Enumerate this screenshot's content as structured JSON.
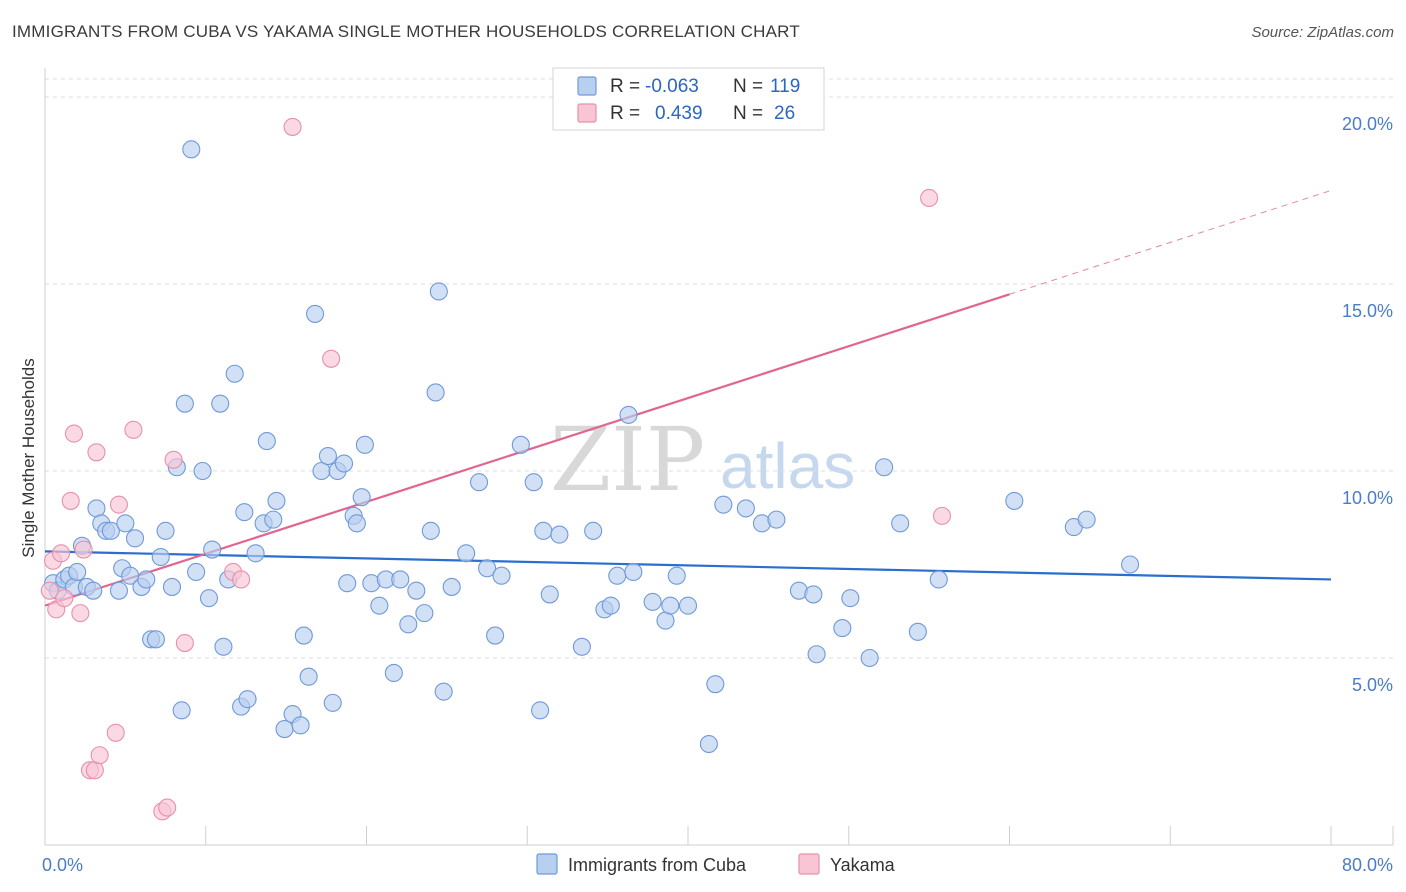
{
  "title": "IMMIGRANTS FROM CUBA VS YAKAMA SINGLE MOTHER HOUSEHOLDS CORRELATION CHART",
  "source": "Source: ZipAtlas.com",
  "colors": {
    "blue_fill": "#b8d0f0",
    "blue_stroke": "#6f9ad8",
    "blue_line": "#2a6fcf",
    "pink_fill": "#f8c5d5",
    "pink_stroke": "#e890ab",
    "pink_line": "#e0668f"
  },
  "legend_top": {
    "rows": [
      {
        "r_label": "R =",
        "r_value": "-0.063",
        "n_label": "N =",
        "n_value": "119"
      },
      {
        "r_label": "R =",
        "r_value": "0.439",
        "n_label": "N =",
        "n_value": "26"
      }
    ]
  },
  "legend_bottom": {
    "series1": "Immigrants from Cuba",
    "series2": "Yakama"
  },
  "watermark": {
    "zip": "ZIP",
    "atlas": "atlas"
  },
  "chart_data": {
    "type": "scatter",
    "title": "IMMIGRANTS FROM CUBA VS YAKAMA SINGLE MOTHER HOUSEHOLDS CORRELATION CHART",
    "xlabel": "",
    "ylabel": "Single Mother Households",
    "xlim": [
      0,
      80
    ],
    "ylim": [
      0,
      20.8
    ],
    "x_tick_labels": [
      {
        "value": 0,
        "label": "0.0%"
      },
      {
        "value": 80,
        "label": "80.0%"
      }
    ],
    "y_tick_labels": [
      {
        "value": 5,
        "label": "5.0%"
      },
      {
        "value": 10,
        "label": "10.0%"
      },
      {
        "value": 15,
        "label": "15.0%"
      },
      {
        "value": 20,
        "label": "20.0%"
      }
    ],
    "series": [
      {
        "name": "Immigrants from Cuba",
        "R": -0.063,
        "N": 119,
        "trend": {
          "x0": 0,
          "y0": 7.85,
          "x1": 80,
          "y1": 7.1,
          "solid_until": 80
        },
        "points": [
          [
            0.5,
            7.0
          ],
          [
            0.8,
            6.8
          ],
          [
            1.2,
            7.1
          ],
          [
            1.5,
            7.2
          ],
          [
            1.8,
            6.9
          ],
          [
            2.0,
            7.3
          ],
          [
            2.3,
            8.0
          ],
          [
            2.6,
            6.9
          ],
          [
            3.0,
            6.8
          ],
          [
            3.2,
            9.0
          ],
          [
            3.5,
            8.6
          ],
          [
            3.8,
            8.4
          ],
          [
            4.1,
            8.4
          ],
          [
            4.6,
            6.8
          ],
          [
            4.8,
            7.4
          ],
          [
            5.0,
            8.6
          ],
          [
            5.3,
            7.2
          ],
          [
            5.6,
            8.2
          ],
          [
            6.0,
            6.9
          ],
          [
            6.3,
            7.1
          ],
          [
            6.6,
            5.5
          ],
          [
            6.9,
            5.5
          ],
          [
            7.2,
            7.7
          ],
          [
            7.5,
            8.4
          ],
          [
            7.9,
            6.9
          ],
          [
            8.2,
            10.1
          ],
          [
            8.5,
            3.6
          ],
          [
            8.7,
            11.8
          ],
          [
            9.1,
            18.6
          ],
          [
            9.4,
            7.3
          ],
          [
            9.8,
            10.0
          ],
          [
            10.2,
            6.6
          ],
          [
            10.4,
            7.9
          ],
          [
            10.9,
            11.8
          ],
          [
            11.1,
            5.3
          ],
          [
            11.4,
            7.1
          ],
          [
            11.8,
            12.6
          ],
          [
            12.2,
            3.7
          ],
          [
            12.4,
            8.9
          ],
          [
            12.6,
            3.9
          ],
          [
            13.1,
            7.8
          ],
          [
            13.6,
            8.6
          ],
          [
            13.8,
            10.8
          ],
          [
            14.2,
            8.7
          ],
          [
            14.4,
            9.2
          ],
          [
            14.9,
            3.1
          ],
          [
            15.4,
            3.5
          ],
          [
            15.9,
            3.2
          ],
          [
            16.1,
            5.6
          ],
          [
            16.4,
            4.5
          ],
          [
            16.8,
            14.2
          ],
          [
            17.2,
            10.0
          ],
          [
            17.6,
            10.4
          ],
          [
            17.9,
            3.8
          ],
          [
            18.2,
            10.0
          ],
          [
            18.6,
            10.2
          ],
          [
            18.8,
            7.0
          ],
          [
            19.2,
            8.8
          ],
          [
            19.4,
            8.6
          ],
          [
            19.7,
            9.3
          ],
          [
            19.9,
            10.7
          ],
          [
            20.3,
            7.0
          ],
          [
            20.8,
            6.4
          ],
          [
            21.2,
            7.1
          ],
          [
            21.7,
            4.6
          ],
          [
            22.1,
            7.1
          ],
          [
            22.6,
            5.9
          ],
          [
            23.1,
            6.8
          ],
          [
            23.6,
            6.2
          ],
          [
            24.0,
            8.4
          ],
          [
            24.3,
            12.1
          ],
          [
            24.5,
            14.8
          ],
          [
            24.8,
            4.1
          ],
          [
            25.3,
            6.9
          ],
          [
            26.2,
            7.8
          ],
          [
            27.0,
            9.7
          ],
          [
            27.5,
            7.4
          ],
          [
            28.0,
            5.6
          ],
          [
            28.4,
            7.2
          ],
          [
            29.6,
            10.7
          ],
          [
            30.4,
            9.7
          ],
          [
            30.8,
            3.6
          ],
          [
            31.0,
            8.4
          ],
          [
            31.4,
            6.7
          ],
          [
            32.0,
            8.3
          ],
          [
            33.4,
            5.3
          ],
          [
            34.1,
            8.4
          ],
          [
            34.8,
            6.3
          ],
          [
            35.2,
            6.4
          ],
          [
            35.6,
            7.2
          ],
          [
            36.3,
            11.5
          ],
          [
            36.6,
            7.3
          ],
          [
            37.8,
            6.5
          ],
          [
            38.6,
            6.0
          ],
          [
            38.9,
            6.4
          ],
          [
            39.3,
            7.2
          ],
          [
            40.0,
            6.4
          ],
          [
            41.3,
            2.7
          ],
          [
            41.7,
            4.3
          ],
          [
            42.2,
            9.1
          ],
          [
            43.6,
            9.0
          ],
          [
            44.6,
            8.6
          ],
          [
            45.5,
            8.7
          ],
          [
            46.9,
            6.8
          ],
          [
            47.8,
            6.7
          ],
          [
            48.0,
            5.1
          ],
          [
            49.6,
            5.8
          ],
          [
            50.1,
            6.6
          ],
          [
            51.3,
            5.0
          ],
          [
            52.2,
            10.1
          ],
          [
            53.2,
            8.6
          ],
          [
            54.3,
            5.7
          ],
          [
            55.6,
            7.1
          ],
          [
            60.3,
            9.2
          ],
          [
            64.0,
            8.5
          ],
          [
            64.8,
            8.7
          ],
          [
            67.5,
            7.5
          ]
        ]
      },
      {
        "name": "Yakama",
        "R": 0.439,
        "N": 26,
        "trend": {
          "x0": 0,
          "y0": 6.4,
          "x1": 80,
          "y1": 17.5,
          "solid_until": 60
        },
        "points": [
          [
            0.3,
            6.8
          ],
          [
            0.5,
            7.6
          ],
          [
            0.7,
            6.3
          ],
          [
            1.0,
            7.8
          ],
          [
            1.2,
            6.6
          ],
          [
            1.6,
            9.2
          ],
          [
            1.8,
            11.0
          ],
          [
            2.2,
            6.2
          ],
          [
            2.4,
            7.9
          ],
          [
            2.8,
            2.0
          ],
          [
            3.1,
            2.0
          ],
          [
            3.2,
            10.5
          ],
          [
            3.4,
            2.4
          ],
          [
            4.4,
            3.0
          ],
          [
            4.6,
            9.1
          ],
          [
            5.5,
            11.1
          ],
          [
            7.3,
            0.9
          ],
          [
            7.6,
            1.0
          ],
          [
            8.0,
            10.3
          ],
          [
            8.7,
            5.4
          ],
          [
            11.7,
            7.3
          ],
          [
            12.2,
            7.1
          ],
          [
            15.4,
            19.2
          ],
          [
            17.8,
            13.0
          ],
          [
            55.0,
            17.3
          ],
          [
            55.8,
            8.8
          ]
        ]
      }
    ]
  }
}
